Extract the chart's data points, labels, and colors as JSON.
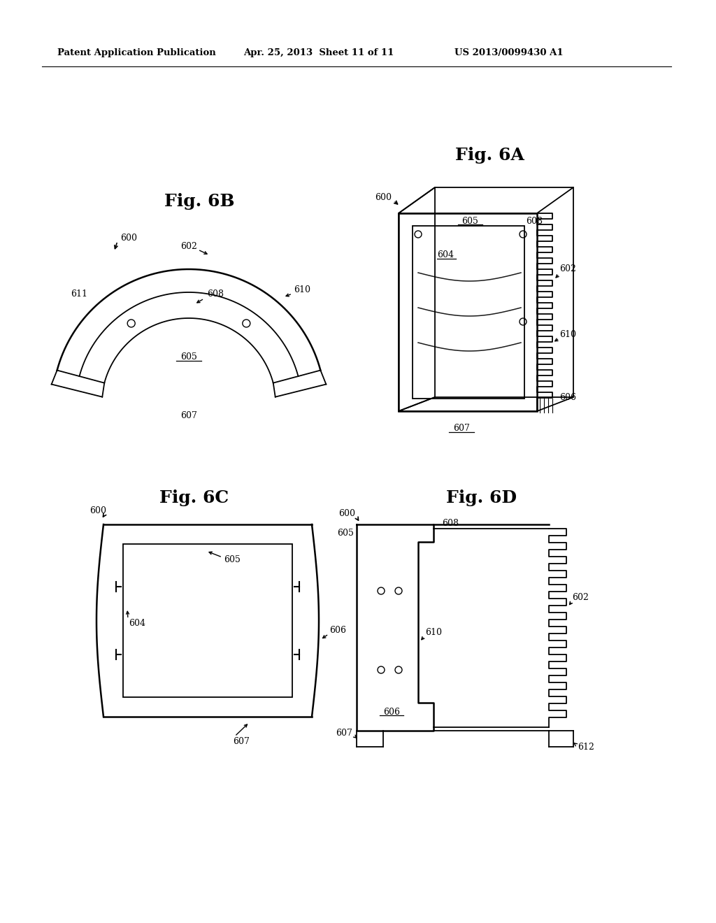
{
  "bg_color": "#ffffff",
  "header_text": "Patent Application Publication",
  "header_date": "Apr. 25, 2013  Sheet 11 of 11",
  "header_patent": "US 2013/0099430 A1"
}
